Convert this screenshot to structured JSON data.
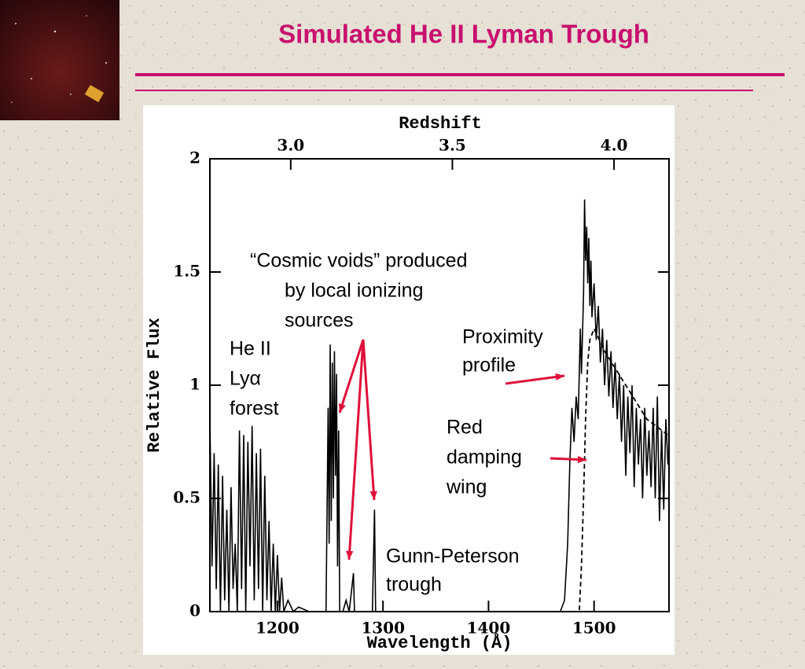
{
  "slide_title": "Simulated He II Lyman Trough",
  "chart_data": {
    "type": "line",
    "x_label": "Wavelength (Å)",
    "y_label": "Relative Flux",
    "x2_label": "Redshift",
    "xlim": [
      1136,
      1571
    ],
    "xticks": [
      1200,
      1300,
      1400,
      1500
    ],
    "ylim": [
      0,
      2
    ],
    "yticks": [
      0,
      0.5,
      1,
      1.5,
      2
    ],
    "x2lim": [
      2.75,
      4.17
    ],
    "x2ticks": [
      {
        "value": 3.0,
        "label": "3.0"
      },
      3.5,
      {
        "value": 4.0,
        "label": "4.0"
      }
    ],
    "series": [
      {
        "color": "#000000",
        "style": "solid",
        "x": [
          1136,
          1138,
          1140,
          1142,
          1144,
          1146,
          1148,
          1150,
          1152,
          1154,
          1156,
          1158,
          1160,
          1162,
          1164,
          1166,
          1168,
          1170,
          1172,
          1174,
          1176,
          1178,
          1180,
          1182,
          1184,
          1186,
          1188,
          1190,
          1192,
          1194,
          1196,
          1198,
          1200,
          1202,
          1204,
          1206,
          1210,
          1215,
          1220,
          1230,
          1240,
          1246,
          1248,
          1249,
          1250,
          1251,
          1252,
          1253,
          1254,
          1255,
          1256,
          1257,
          1258,
          1259,
          1262,
          1265,
          1268,
          1272,
          1273,
          1280,
          1290,
          1292,
          1293,
          1300,
          1350,
          1400,
          1450,
          1468,
          1472,
          1475,
          1477,
          1479,
          1481,
          1483,
          1485,
          1487,
          1488,
          1490,
          1491,
          1492,
          1493,
          1494,
          1495,
          1496,
          1497,
          1498,
          1500,
          1502,
          1504,
          1506,
          1508,
          1510,
          1512,
          1514,
          1516,
          1518,
          1520,
          1522,
          1524,
          1526,
          1528,
          1530,
          1532,
          1534,
          1536,
          1538,
          1540,
          1542,
          1544,
          1546,
          1548,
          1550,
          1552,
          1554,
          1556,
          1558,
          1560,
          1562,
          1564,
          1566,
          1568,
          1570
        ],
        "values": [
          0.85,
          0.2,
          0.7,
          0.1,
          0.65,
          0,
          0.6,
          0.05,
          0.45,
          0,
          0.55,
          0.1,
          0.3,
          0,
          0.8,
          0.1,
          0.78,
          0,
          0.75,
          0.2,
          0.82,
          0.05,
          0.7,
          0.1,
          0.72,
          0,
          0.6,
          0.05,
          0.4,
          0,
          0.3,
          0,
          0.25,
          0,
          0.15,
          0,
          0.05,
          0,
          0.02,
          0,
          0,
          0,
          0.9,
          0.3,
          1.18,
          0.4,
          1.1,
          0.5,
          1.15,
          0.6,
          1.05,
          0.2,
          0.8,
          0,
          0,
          0.05,
          0,
          0.17,
          0,
          0,
          0,
          0.45,
          0,
          0,
          0,
          0,
          0,
          0,
          0.05,
          0.3,
          0.65,
          0.9,
          0.75,
          0.95,
          0.85,
          1.25,
          1.05,
          1.4,
          1.82,
          1.55,
          1.7,
          1.45,
          1.65,
          1.35,
          1.55,
          1.3,
          1.45,
          1.2,
          1.35,
          1.1,
          1.25,
          1.0,
          1.2,
          0.95,
          1.15,
          0.9,
          1.1,
          0.85,
          1.05,
          0.75,
          1.0,
          0.6,
          0.95,
          0.7,
          1.0,
          0.55,
          0.9,
          0.65,
          0.85,
          0.5,
          0.9,
          0.6,
          0.8,
          0.55,
          0.9,
          0.5,
          0.95,
          0.4,
          0.8,
          0.45,
          0.85,
          0.65
        ]
      },
      {
        "color": "#000000",
        "style": "dashed",
        "x": [
          1480,
          1486,
          1488,
          1490,
          1492,
          1494,
          1496,
          1500,
          1510,
          1530,
          1550,
          1570
        ],
        "values": [
          0,
          0,
          0.2,
          0.5,
          0.85,
          1.1,
          1.2,
          1.25,
          1.15,
          1.0,
          0.85,
          0.78
        ]
      }
    ],
    "annotations": [
      {
        "lines": [
          "“Cosmic voids” produced",
          "by local ionizing",
          "sources"
        ]
      },
      {
        "lines": [
          "He II",
          "Lyα",
          "forest"
        ]
      },
      {
        "lines": [
          "Proximity",
          "profile"
        ]
      },
      {
        "lines": [
          "Red",
          "damping",
          "wing"
        ]
      },
      {
        "lines": [
          "Gunn-Peterson",
          "trough"
        ]
      }
    ]
  }
}
